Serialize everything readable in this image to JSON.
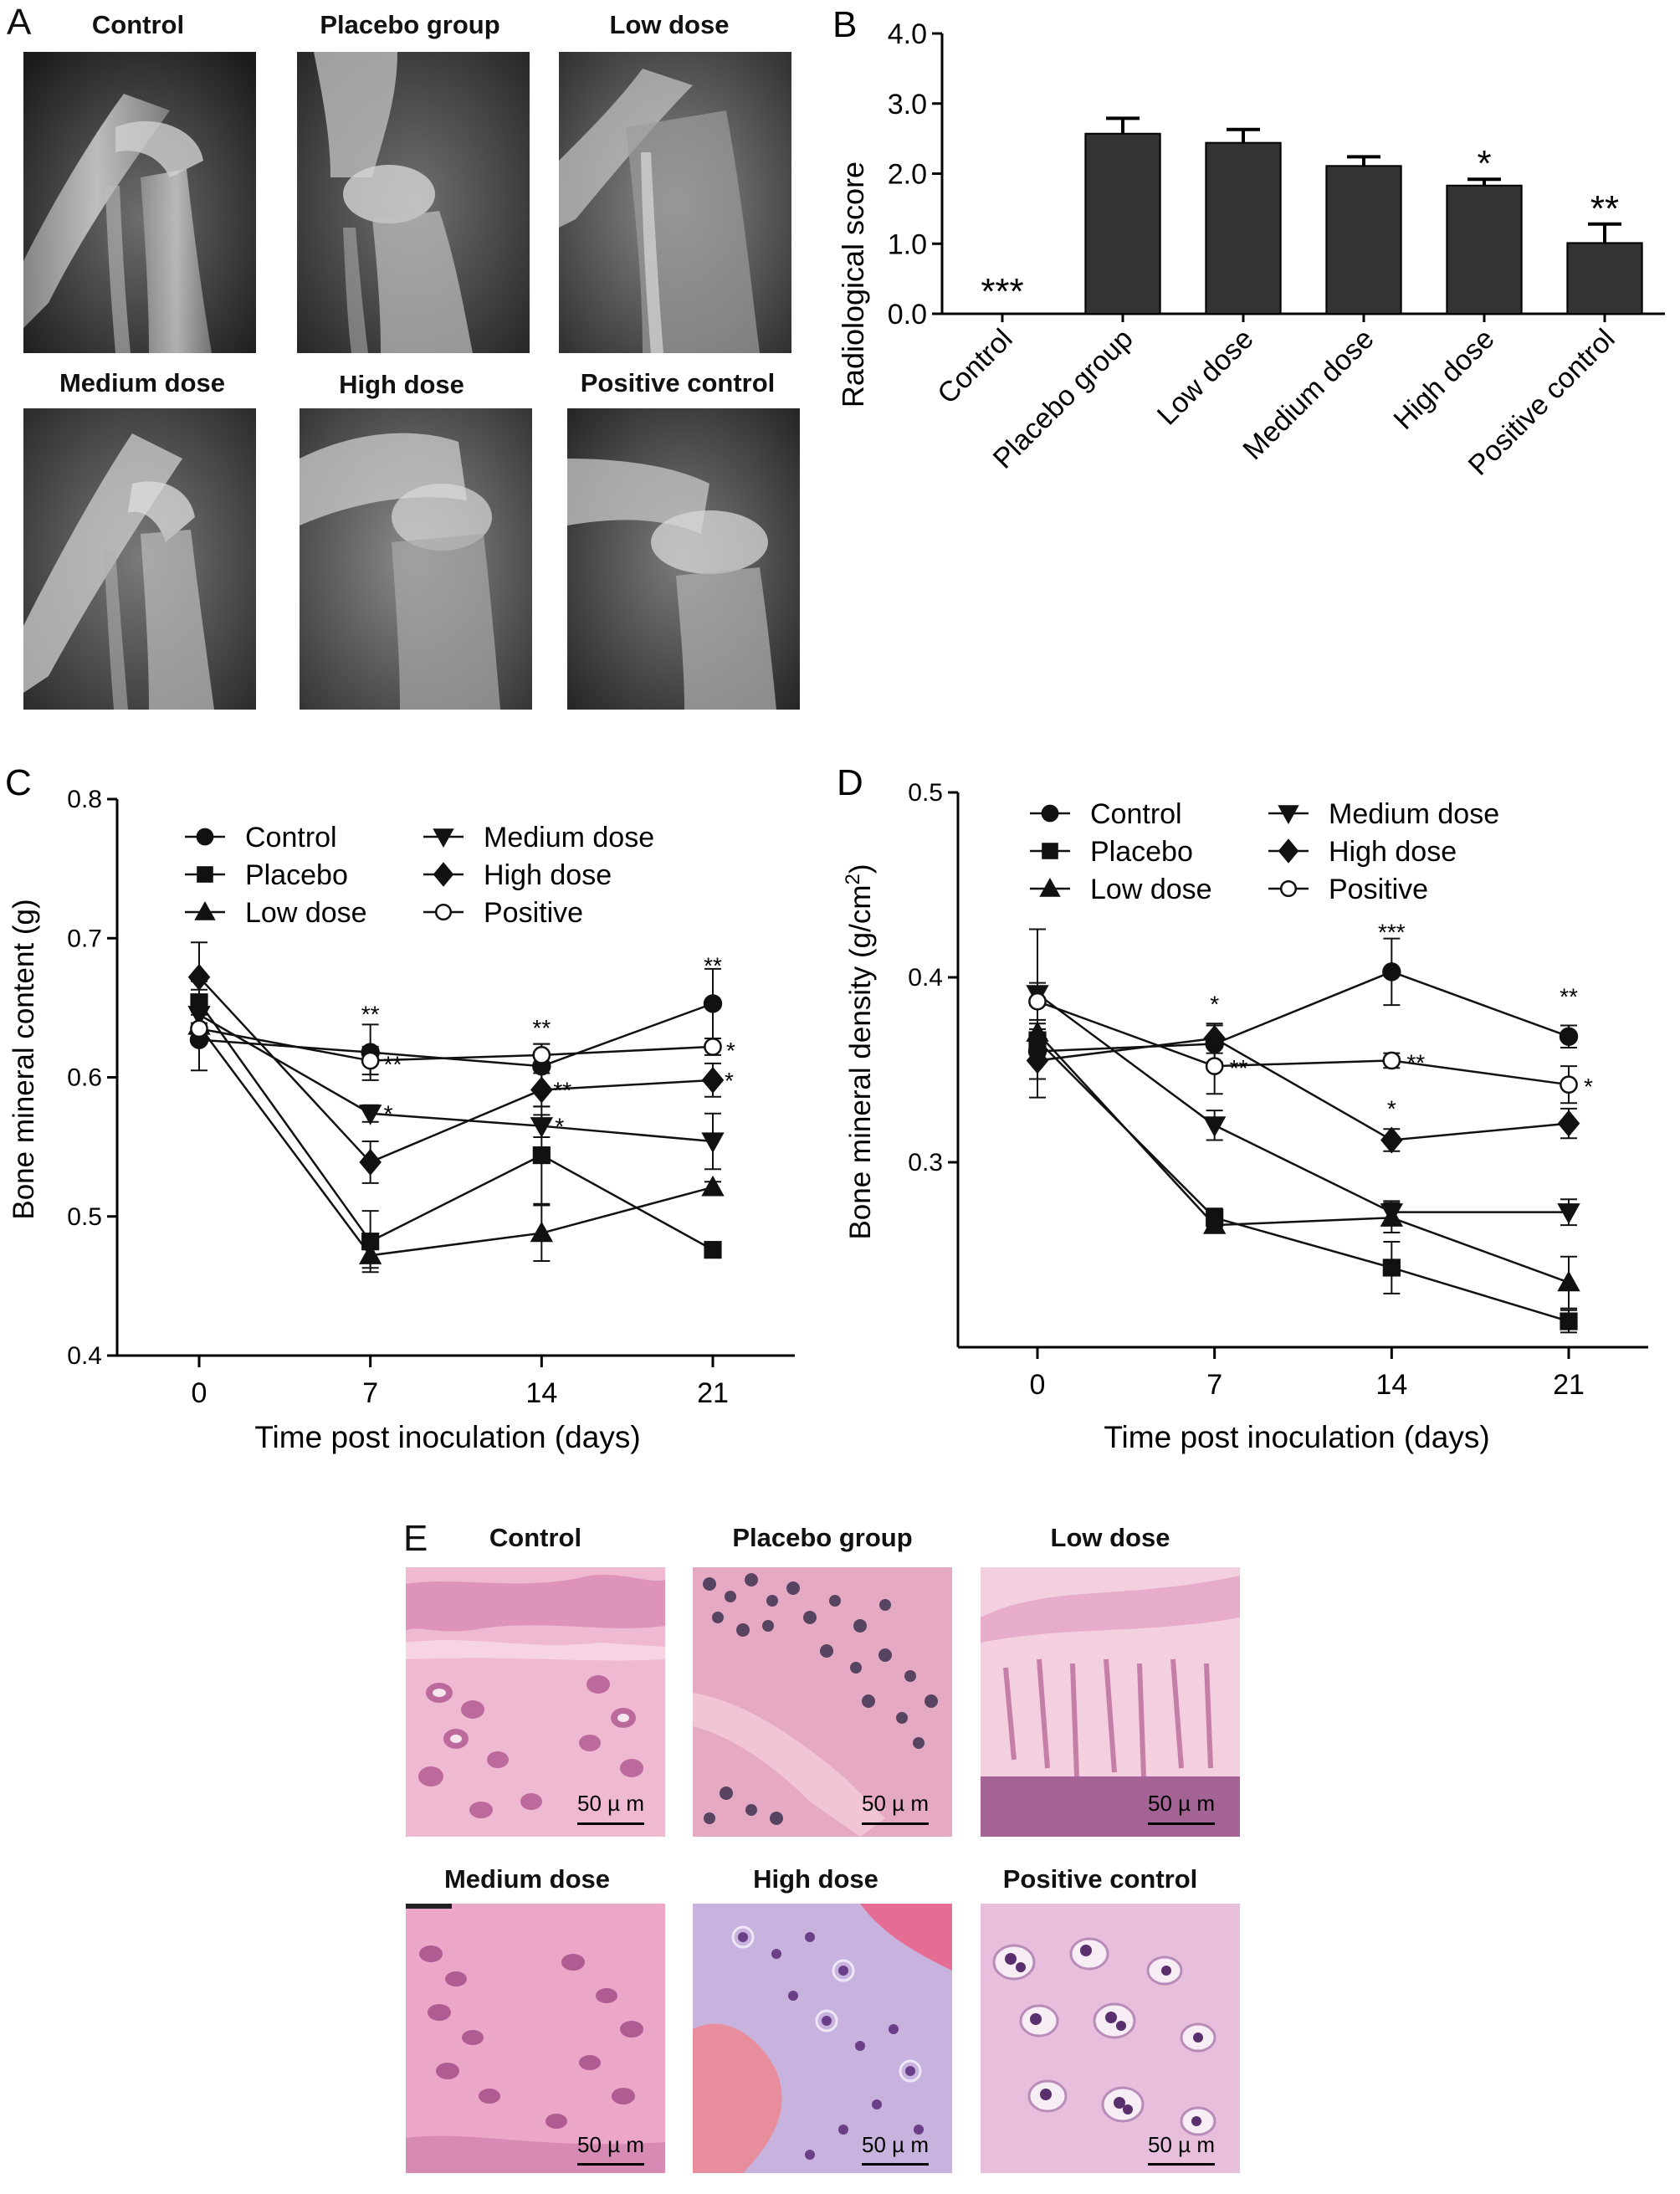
{
  "panels": {
    "A": {
      "letter": "A",
      "images": [
        {
          "caption": "Control"
        },
        {
          "caption": "Placebo group"
        },
        {
          "caption": "Low  dose"
        },
        {
          "caption": "Medium dose"
        },
        {
          "caption": "High dose"
        },
        {
          "caption": "Positive control"
        }
      ]
    },
    "E": {
      "letter": "E",
      "images": [
        {
          "caption": "Control",
          "scalebar": "50 µ m"
        },
        {
          "caption": "Placebo group",
          "scalebar": "50 µ m"
        },
        {
          "caption": "Low  dose",
          "scalebar": "50 µ m"
        },
        {
          "caption": "Medium dose",
          "scalebar": "50 µ m"
        },
        {
          "caption": "High dose",
          "scalebar": "50 µ m"
        },
        {
          "caption": "Positive control",
          "scalebar": "50 µ m"
        }
      ]
    }
  },
  "chart_data": [
    {
      "panel": "B",
      "type": "bar",
      "title": "",
      "xlabel": "",
      "ylabel": "Radiological score",
      "ylim": [
        0,
        4
      ],
      "yticks": [
        "0.0",
        "1.0",
        "2.0",
        "3.0",
        "4.0"
      ],
      "categories": [
        "Control",
        "Placebo group",
        "Low dose",
        "Medium dose",
        "High dose",
        "Positive control"
      ],
      "values": [
        0,
        2.57,
        2.44,
        2.11,
        1.83,
        1.01
      ],
      "errors": [
        0,
        0.22,
        0.19,
        0.13,
        0.09,
        0.27
      ],
      "annotations": [
        "***",
        "",
        "",
        "",
        "*",
        "**"
      ],
      "bar_color": "#333333"
    },
    {
      "panel": "C",
      "type": "line",
      "title": "",
      "xlabel": "Time post inoculation (days)",
      "ylabel": "Bone mineral content (g)",
      "x": [
        0,
        7,
        14,
        21
      ],
      "xticks": [
        "0",
        "7",
        "14",
        "21"
      ],
      "ylim": [
        0.4,
        0.8
      ],
      "yticks": [
        "0.4",
        "0.5",
        "0.6",
        "0.7",
        "0.8"
      ],
      "legend": "top-left",
      "series": [
        {
          "name": "Control",
          "marker": "circle",
          "values": [
            0.627,
            0.618,
            0.608,
            0.653
          ],
          "errors": [
            0.022,
            0.02,
            0.016,
            0.025
          ],
          "annotations": [
            "",
            "**",
            "**",
            "**"
          ]
        },
        {
          "name": "Placebo",
          "marker": "square",
          "values": [
            0.654,
            0.482,
            0.544,
            0.476
          ],
          "errors": [
            0.015,
            0.022,
            0.035,
            0.004
          ],
          "annotations": [
            "",
            "",
            "",
            ""
          ]
        },
        {
          "name": "Low dose",
          "marker": "triangle-up",
          "values": [
            0.637,
            0.472,
            0.488,
            0.521
          ],
          "errors": [
            0.012,
            0.009,
            0.02,
            0.004
          ],
          "annotations": [
            "",
            "",
            "",
            ""
          ]
        },
        {
          "name": "Medium dose",
          "marker": "triangle-down",
          "values": [
            0.645,
            0.574,
            0.565,
            0.554
          ],
          "errors": [
            0.018,
            0.006,
            0.008,
            0.02
          ],
          "annotations": [
            "",
            "*",
            "*",
            ""
          ]
        },
        {
          "name": "High dose",
          "marker": "diamond",
          "values": [
            0.672,
            0.539,
            0.591,
            0.598
          ],
          "errors": [
            0.025,
            0.015,
            0.012,
            0.012
          ],
          "annotations": [
            "",
            "",
            "**",
            "*"
          ]
        },
        {
          "name": "Positive",
          "marker": "open-circle",
          "values": [
            0.635,
            0.612,
            0.616,
            0.622
          ],
          "errors": [
            0.01,
            0.01,
            0.008,
            0.006
          ],
          "annotations": [
            "",
            "**",
            "",
            "*"
          ]
        }
      ]
    },
    {
      "panel": "D",
      "type": "line",
      "title": "",
      "xlabel": "Time post inoculation (days)",
      "ylabel": "Bone mineral density (g/cm²)",
      "ylabel_main": "Bone mineral density (g/cm",
      "ylabel_sup": "2",
      "ylabel_end": ")",
      "x": [
        0,
        7,
        14,
        21
      ],
      "xticks": [
        "0",
        "7",
        "14",
        "21"
      ],
      "ylim": [
        0.2,
        0.5
      ],
      "yticks": [
        "0.3",
        "0.4",
        "0.5"
      ],
      "legend": "top-left",
      "series": [
        {
          "name": "Control",
          "marker": "circle",
          "values": [
            0.36,
            0.364,
            0.403,
            0.368
          ],
          "errors": [
            0.025,
            0.01,
            0.018,
            0.006
          ],
          "annotations": [
            "",
            "*",
            "***",
            "**"
          ]
        },
        {
          "name": "Placebo",
          "marker": "square",
          "values": [
            0.366,
            0.27,
            0.243,
            0.214
          ],
          "errors": [
            0.006,
            0.005,
            0.014,
            0.006
          ],
          "annotations": [
            "",
            "",
            "",
            ""
          ]
        },
        {
          "name": "Low dose",
          "marker": "triangle-up",
          "values": [
            0.37,
            0.266,
            0.27,
            0.235
          ],
          "errors": [
            0.005,
            0.004,
            0.008,
            0.014
          ],
          "annotations": [
            "",
            "",
            "",
            ""
          ]
        },
        {
          "name": "Medium dose",
          "marker": "triangle-down",
          "values": [
            0.391,
            0.32,
            0.273,
            0.273
          ],
          "errors": [
            0.035,
            0.008,
            0.006,
            0.007
          ],
          "annotations": [
            "",
            "",
            "",
            ""
          ]
        },
        {
          "name": "High dose",
          "marker": "diamond",
          "values": [
            0.355,
            0.367,
            0.312,
            0.321
          ],
          "errors": [
            0.01,
            0.008,
            0.006,
            0.008
          ],
          "annotations": [
            "",
            "",
            "*",
            "*"
          ]
        },
        {
          "name": "Positive",
          "marker": "open-circle",
          "values": [
            0.387,
            0.352,
            0.355,
            0.342
          ],
          "errors": [
            0.01,
            0.015,
            0.004,
            0.01
          ],
          "annotations": [
            "",
            "**",
            "**",
            "*"
          ]
        }
      ]
    }
  ]
}
